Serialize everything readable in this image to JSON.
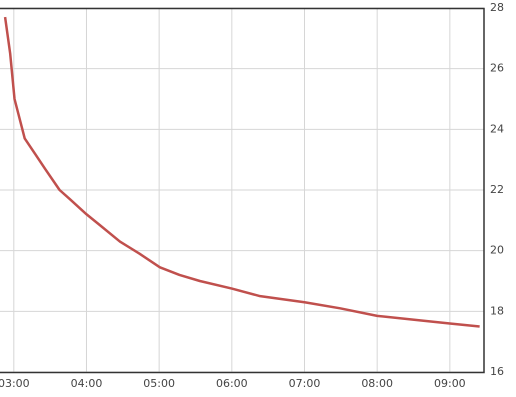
{
  "chart_data": {
    "type": "line",
    "x": [
      2.88,
      2.95,
      3.01,
      3.15,
      3.29,
      3.43,
      3.63,
      3.77,
      4.0,
      4.18,
      4.46,
      4.73,
      5.01,
      5.28,
      5.56,
      6.0,
      6.39,
      7.0,
      7.49,
      8.0,
      8.59,
      9.0,
      9.41
    ],
    "series": [
      {
        "color": "#c0504d",
        "values": [
          27.7,
          26.5,
          25.0,
          23.7,
          23.2,
          22.7,
          22.0,
          21.7,
          21.2,
          20.85,
          20.3,
          19.9,
          19.45,
          19.2,
          19.0,
          18.75,
          18.5,
          18.3,
          18.1,
          17.85,
          17.7,
          17.6,
          17.5
        ]
      }
    ],
    "xlim": [
      2.81,
      9.47
    ],
    "xticks": [
      {
        "value": 3,
        "label": "03:00"
      },
      {
        "value": 4,
        "label": "04:00"
      },
      {
        "value": 5,
        "label": "05:00"
      },
      {
        "value": 6,
        "label": "06:00"
      },
      {
        "value": 7,
        "label": "07:00"
      },
      {
        "value": 8,
        "label": "08:00"
      },
      {
        "value": 9,
        "label": "09:00"
      }
    ],
    "ylim": [
      16,
      28
    ],
    "yticks": [
      16,
      18,
      20,
      22,
      24,
      26,
      28
    ],
    "grid": true
  }
}
